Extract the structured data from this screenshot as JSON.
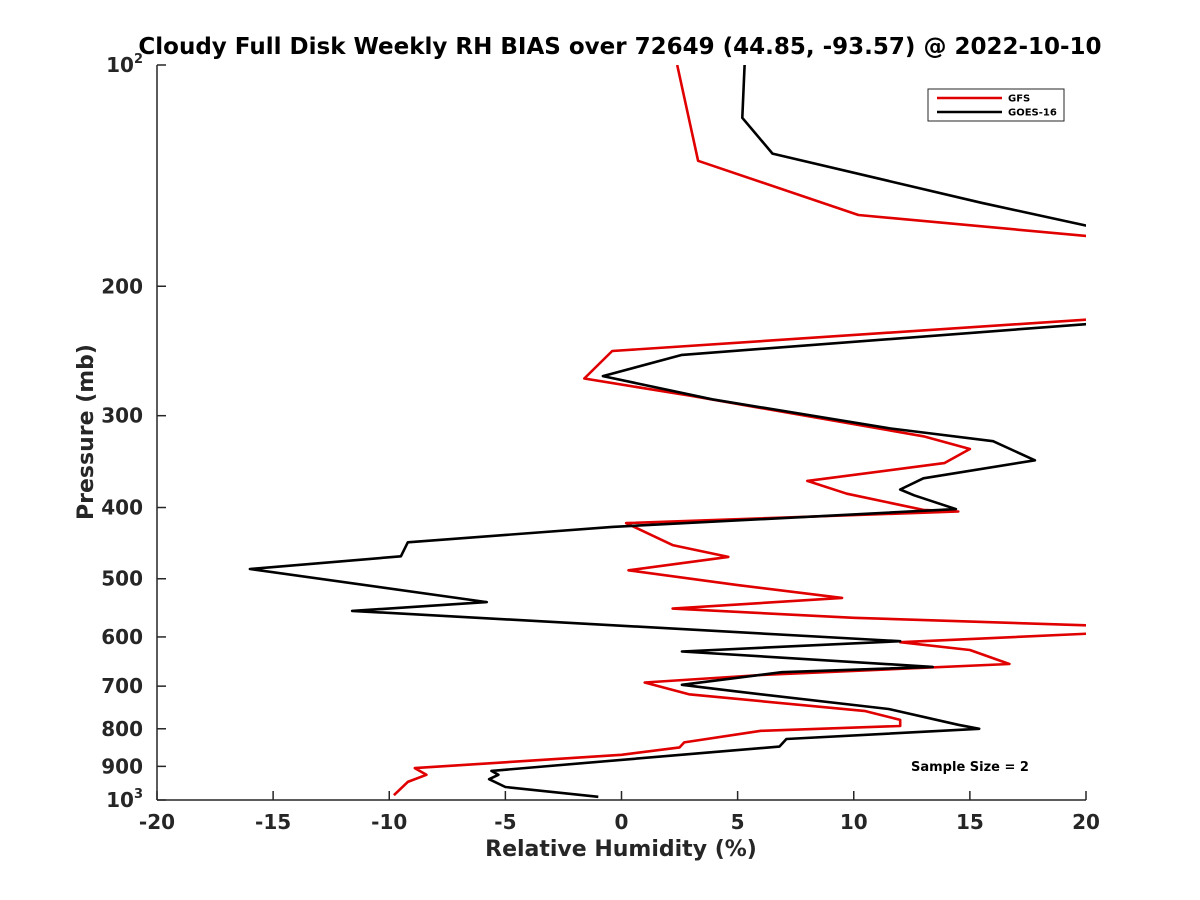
{
  "chart_data": {
    "type": "line",
    "title": "Cloudy Full Disk Weekly RH BIAS over 72649 (44.85, -93.57) @ 2022-10-10",
    "xlabel": "Relative Humidity (%)",
    "ylabel": "Pressure (mb)",
    "xlim": [
      -20,
      20
    ],
    "ylim": [
      100,
      1000
    ],
    "y_scale": "log",
    "y_reversed": true,
    "grid": false,
    "legend_position": "top-right",
    "x_ticks": [
      -20,
      -15,
      -10,
      -5,
      0,
      5,
      10,
      15,
      20
    ],
    "x_tick_labels": [
      "-20",
      "-15",
      "-10",
      "-5",
      "0",
      "5",
      "10",
      "15",
      "20"
    ],
    "y_ticks": [
      {
        "value": 100,
        "base": "10",
        "exp": "2"
      },
      {
        "value": 200,
        "label": "200"
      },
      {
        "value": 300,
        "label": "300"
      },
      {
        "value": 400,
        "label": "400"
      },
      {
        "value": 500,
        "label": "500"
      },
      {
        "value": 600,
        "label": "600"
      },
      {
        "value": 700,
        "label": "700"
      },
      {
        "value": 800,
        "label": "800"
      },
      {
        "value": 900,
        "label": "900"
      },
      {
        "value": 1000,
        "base": "10",
        "exp": "3"
      }
    ],
    "annotation": "Sample Size = 2",
    "series": [
      {
        "name": "GFS",
        "color": "#e00000",
        "points": [
          [
            2.4,
            100
          ],
          [
            3.3,
            135
          ],
          [
            10.2,
            160
          ],
          [
            21,
            172
          ],
          [
            21,
            221
          ],
          [
            -0.4,
            245
          ],
          [
            -1.6,
            267
          ],
          [
            3.0,
            282
          ],
          [
            13.0,
            320
          ],
          [
            15.0,
            333
          ],
          [
            13.9,
            348
          ],
          [
            8.0,
            368
          ],
          [
            9.7,
            383
          ],
          [
            13.0,
            403
          ],
          [
            14.5,
            405
          ],
          [
            0.2,
            420
          ],
          [
            2.2,
            450
          ],
          [
            4.6,
            467
          ],
          [
            0.3,
            487
          ],
          [
            5.0,
            510
          ],
          [
            9.5,
            531
          ],
          [
            2.2,
            549
          ],
          [
            10.0,
            565
          ],
          [
            21,
            580
          ],
          [
            21,
            592
          ],
          [
            12.0,
            610
          ],
          [
            15.0,
            625
          ],
          [
            16.7,
            653
          ],
          [
            6.0,
            676
          ],
          [
            1.0,
            692
          ],
          [
            2.9,
            718
          ],
          [
            10.5,
            757
          ],
          [
            12.0,
            778
          ],
          [
            12.0,
            793
          ],
          [
            6.0,
            805
          ],
          [
            2.7,
            835
          ],
          [
            2.5,
            848
          ],
          [
            0.0,
            868
          ],
          [
            -8.9,
            905
          ],
          [
            -8.4,
            924
          ],
          [
            -9.2,
            945
          ],
          [
            -9.8,
            985
          ]
        ]
      },
      {
        "name": "GOES-16",
        "color": "#000000",
        "points": [
          [
            5.3,
            100
          ],
          [
            5.2,
            118
          ],
          [
            6.5,
            132
          ],
          [
            15.5,
            154
          ],
          [
            21,
            168
          ],
          [
            21,
            224
          ],
          [
            2.6,
            248
          ],
          [
            -0.8,
            265
          ],
          [
            3.9,
            285
          ],
          [
            11.5,
            312
          ],
          [
            16.0,
            325
          ],
          [
            17.8,
            345
          ],
          [
            13.0,
            365
          ],
          [
            12.0,
            378
          ],
          [
            12.6,
            385
          ],
          [
            14.4,
            402
          ],
          [
            -0.4,
            425
          ],
          [
            -9.2,
            446
          ],
          [
            -9.5,
            466
          ],
          [
            -16.0,
            485
          ],
          [
            -5.8,
            538
          ],
          [
            -11.6,
            553
          ],
          [
            -1.8,
            575
          ],
          [
            12.0,
            608
          ],
          [
            2.6,
            628
          ],
          [
            13.4,
            659
          ],
          [
            6.9,
            670
          ],
          [
            2.6,
            697
          ],
          [
            5.0,
            712
          ],
          [
            11.5,
            752
          ],
          [
            14.5,
            790
          ],
          [
            15.4,
            800
          ],
          [
            7.1,
            826
          ],
          [
            6.8,
            846
          ],
          [
            3.9,
            861
          ],
          [
            -5.6,
            913
          ],
          [
            -5.3,
            924
          ],
          [
            -5.7,
            937
          ],
          [
            -5.0,
            960
          ],
          [
            -1.0,
            990
          ]
        ]
      }
    ]
  }
}
